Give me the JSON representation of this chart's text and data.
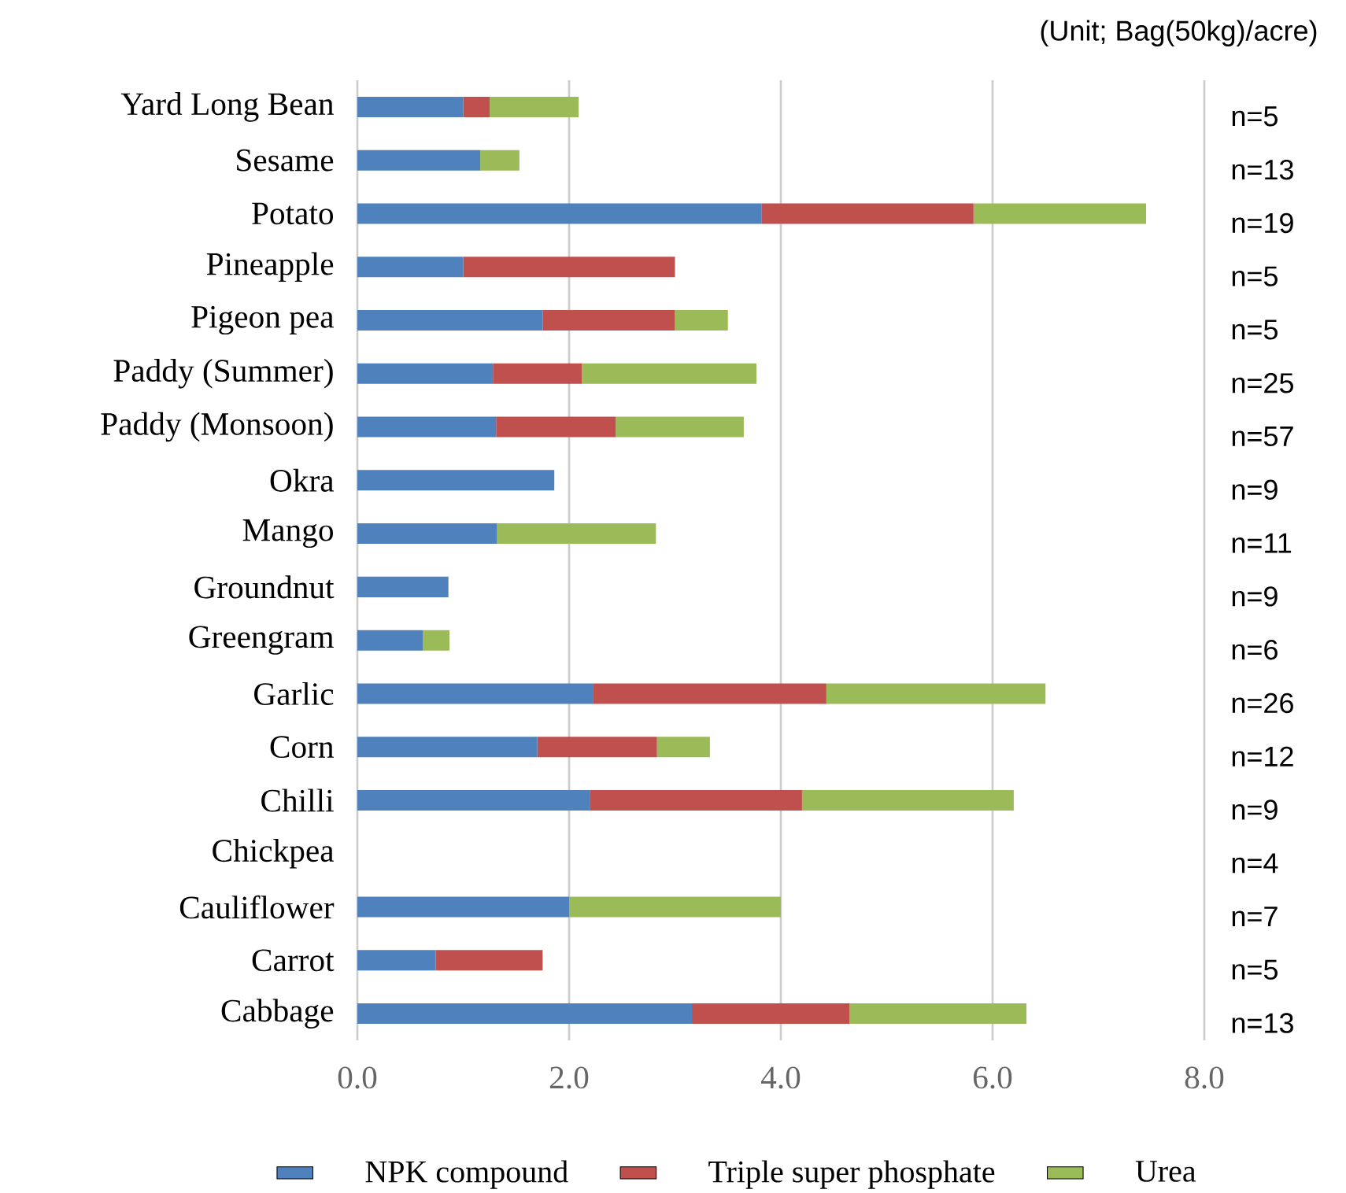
{
  "chart_data": {
    "type": "bar",
    "orientation": "horizontal",
    "stacked": true,
    "categories": [
      "Yard Long Bean",
      "Sesame",
      "Potato",
      "Pineapple",
      "Pigeon pea",
      "Paddy (Summer)",
      "Paddy (Monsoon)",
      "Okra",
      "Mango",
      "Groundnut",
      "Greengram",
      "Garlic",
      "Corn",
      "Chilli",
      "Chickpea",
      "Cauliflower",
      "Carrot",
      "Cabbage"
    ],
    "series": [
      {
        "name": "NPK compound",
        "color": "#4f81bd",
        "values": [
          1.0,
          1.16,
          3.82,
          1.0,
          1.75,
          1.28,
          1.31,
          1.86,
          1.32,
          0.86,
          0.62,
          2.23,
          1.7,
          2.2,
          0,
          2.0,
          0.74,
          3.16
        ]
      },
      {
        "name": "Triple super phosphate",
        "color": "#c0504d",
        "values": [
          0.25,
          0,
          2.0,
          2.0,
          1.25,
          0.84,
          1.13,
          0,
          0,
          0,
          0,
          2.2,
          1.13,
          2.0,
          0,
          0,
          1.01,
          1.49
        ]
      },
      {
        "name": "Urea",
        "color": "#9bbb59",
        "values": [
          0.84,
          0.37,
          1.63,
          0,
          0.5,
          1.65,
          1.21,
          0,
          1.5,
          0,
          0.25,
          2.07,
          0.5,
          2.0,
          0,
          2.0,
          0,
          1.67
        ]
      }
    ],
    "xlim": [
      0,
      8
    ],
    "xticks": [
      {
        "value": 0,
        "label": "0.0"
      },
      {
        "value": 2,
        "label": "2.0"
      },
      {
        "value": 4,
        "label": "4.0"
      },
      {
        "value": 6,
        "label": "6.0"
      },
      {
        "value": 8,
        "label": "8.0"
      }
    ],
    "grid": "x",
    "legend": "bottom",
    "annotations": [
      "(Unit; Bag(50kg)/acre)",
      "n=5",
      "n=13",
      "n=19",
      "n=5",
      "n=5",
      "n=25",
      "n=57",
      "n=9",
      "n=11",
      "n=9",
      "n=6",
      "n=26",
      "n=12",
      "n=9",
      "n=4",
      "n=7",
      "n=5",
      "n=13"
    ]
  }
}
